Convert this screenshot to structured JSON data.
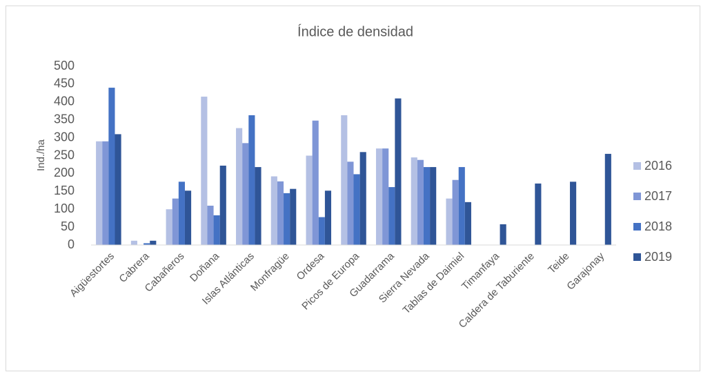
{
  "chart_data": {
    "type": "bar",
    "title": "Índice de densidad",
    "y_label": "Ind./ha",
    "categories": [
      "Aigüestortes",
      "Cabrera",
      "Cabañeros",
      "Doñana",
      "Islas Atlánticas",
      "Monfragüe",
      "Ordesa",
      "Picos de Europa",
      "Guadarrama",
      "Sierra Nevada",
      "Tablas de Daimiel",
      "Timanfaya",
      "Caldera de Taburiente",
      "Teide",
      "Garajonay"
    ],
    "series": [
      {
        "name": "2016",
        "color": "#b4c0e4",
        "values": [
          290,
          12,
          100,
          415,
          327,
          192,
          250,
          363,
          270,
          245,
          130,
          null,
          null,
          null,
          null
        ]
      },
      {
        "name": "2017",
        "color": "#7f96d6",
        "values": [
          290,
          null,
          130,
          110,
          285,
          178,
          348,
          233,
          270,
          238,
          182,
          null,
          null,
          null,
          null
        ]
      },
      {
        "name": "2018",
        "color": "#4472c4",
        "values": [
          440,
          5,
          177,
          83,
          363,
          145,
          78,
          198,
          162,
          218,
          218,
          null,
          null,
          null,
          null
        ]
      },
      {
        "name": "2019",
        "color": "#2f5597",
        "values": [
          310,
          12,
          152,
          222,
          218,
          157,
          152,
          260,
          410,
          218,
          120,
          58,
          172,
          177,
          255
        ]
      }
    ],
    "ylim": [
      0,
      500
    ],
    "yticks": [
      0,
      50,
      100,
      150,
      200,
      250,
      300,
      350,
      400,
      450,
      500
    ],
    "grid": false,
    "legend": "right"
  }
}
